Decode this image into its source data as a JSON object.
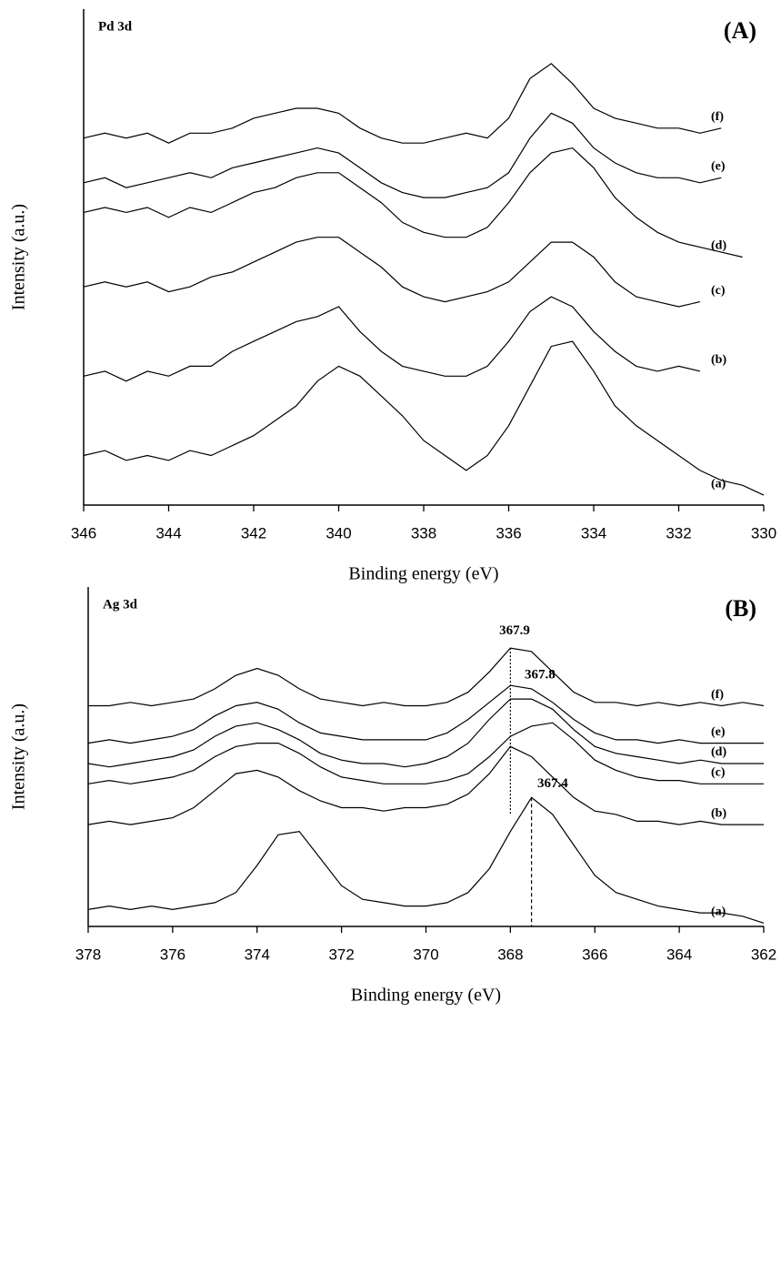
{
  "chart_data": [
    {
      "type": "line",
      "title": "Pd 3d",
      "panel_label": "(A)",
      "xlabel": "Binding energy (eV)",
      "ylabel": "Intensity (a.u.)",
      "x": [
        346,
        345.5,
        345,
        344.5,
        344,
        343.5,
        343,
        342.5,
        342,
        341.5,
        341,
        340.5,
        340,
        339.5,
        339,
        338.5,
        338,
        337.5,
        337,
        336.5,
        336,
        335.5,
        335,
        334.5,
        334,
        333.5,
        333,
        332.5,
        332,
        331.5,
        331,
        330.5,
        330
      ],
      "xlim": [
        346,
        330
      ],
      "xticks": [
        346,
        344,
        342,
        340,
        338,
        336,
        334,
        332,
        330
      ],
      "ylim": [
        0,
        100
      ],
      "series": [
        {
          "name": "(a)",
          "color": "#000000",
          "values": [
            10,
            11,
            9,
            10,
            9,
            11,
            10,
            12,
            14,
            17,
            20,
            25,
            28,
            26,
            22,
            18,
            13,
            10,
            7,
            10,
            16,
            24,
            32,
            33,
            27,
            20,
            16,
            13,
            10,
            7,
            5,
            4,
            2
          ]
        },
        {
          "name": "(b)",
          "color": "#000000",
          "values": [
            26,
            27,
            25,
            27,
            26,
            28,
            28,
            31,
            33,
            35,
            37,
            38,
            40,
            35,
            31,
            28,
            27,
            26,
            26,
            28,
            33,
            39,
            42,
            40,
            35,
            31,
            28,
            27,
            28,
            27,
            null,
            null,
            null
          ]
        },
        {
          "name": "(c)",
          "color": "#000000",
          "values": [
            44,
            45,
            44,
            45,
            43,
            44,
            46,
            47,
            49,
            51,
            53,
            54,
            54,
            51,
            48,
            44,
            42,
            41,
            42,
            43,
            45,
            49,
            53,
            53,
            50,
            45,
            42,
            41,
            40,
            41,
            null,
            null,
            null
          ]
        },
        {
          "name": "(d)",
          "color": "#000000",
          "values": [
            59,
            60,
            59,
            60,
            58,
            60,
            59,
            61,
            63,
            64,
            66,
            67,
            67,
            64,
            61,
            57,
            55,
            54,
            54,
            56,
            61,
            67,
            71,
            72,
            68,
            62,
            58,
            55,
            53,
            52,
            51,
            50,
            null
          ]
        },
        {
          "name": "(e)",
          "color": "#000000",
          "values": [
            65,
            66,
            64,
            65,
            66,
            67,
            66,
            68,
            69,
            70,
            71,
            72,
            71,
            68,
            65,
            63,
            62,
            62,
            63,
            64,
            67,
            74,
            79,
            77,
            72,
            69,
            67,
            66,
            66,
            65,
            66,
            null,
            null
          ]
        },
        {
          "name": "(f)",
          "color": "#000000",
          "values": [
            74,
            75,
            74,
            75,
            73,
            75,
            75,
            76,
            78,
            79,
            80,
            80,
            79,
            76,
            74,
            73,
            73,
            74,
            75,
            74,
            78,
            86,
            89,
            85,
            80,
            78,
            77,
            76,
            76,
            75,
            76,
            null,
            null
          ]
        }
      ]
    },
    {
      "type": "line",
      "title": "Ag 3d",
      "panel_label": "(B)",
      "xlabel": "Binding energy (eV)",
      "ylabel": "Intensity (a.u.)",
      "x": [
        378,
        377.5,
        377,
        376.5,
        376,
        375.5,
        375,
        374.5,
        374,
        373.5,
        373,
        372.5,
        372,
        371.5,
        371,
        370.5,
        370,
        369.5,
        369,
        368.5,
        368,
        367.5,
        367,
        366.5,
        366,
        365.5,
        365,
        364.5,
        364,
        363.5,
        363,
        362.5,
        362
      ],
      "xlim": [
        378,
        362
      ],
      "xticks": [
        378,
        376,
        374,
        372,
        370,
        368,
        366,
        364,
        362
      ],
      "ylim": [
        0,
        100
      ],
      "series": [
        {
          "name": "(a)",
          "color": "#000000",
          "values": [
            5,
            6,
            5,
            6,
            5,
            6,
            7,
            10,
            18,
            27,
            28,
            20,
            12,
            8,
            7,
            6,
            6,
            7,
            10,
            17,
            28,
            38,
            33,
            24,
            15,
            10,
            8,
            6,
            5,
            4,
            4,
            3,
            1
          ]
        },
        {
          "name": "(b)",
          "color": "#000000",
          "values": [
            30,
            31,
            30,
            31,
            32,
            35,
            40,
            45,
            46,
            44,
            40,
            37,
            35,
            35,
            34,
            35,
            35,
            36,
            39,
            45,
            53,
            50,
            44,
            38,
            34,
            33,
            31,
            31,
            30,
            31,
            30,
            30,
            30
          ]
        },
        {
          "name": "(c)",
          "color": "#000000",
          "values": [
            42,
            43,
            42,
            43,
            44,
            46,
            50,
            53,
            54,
            54,
            51,
            47,
            44,
            43,
            42,
            42,
            42,
            43,
            45,
            50,
            56,
            59,
            60,
            55,
            49,
            46,
            44,
            43,
            43,
            42,
            42,
            42,
            42
          ]
        },
        {
          "name": "(d)",
          "color": "#000000",
          "values": [
            48,
            47,
            48,
            49,
            50,
            52,
            56,
            59,
            60,
            58,
            55,
            51,
            49,
            48,
            48,
            47,
            48,
            50,
            54,
            61,
            67,
            67,
            64,
            58,
            53,
            51,
            50,
            49,
            48,
            49,
            48,
            48,
            48
          ]
        },
        {
          "name": "(e)",
          "color": "#000000",
          "values": [
            54,
            55,
            54,
            55,
            56,
            58,
            62,
            65,
            66,
            64,
            60,
            57,
            56,
            55,
            55,
            55,
            55,
            57,
            61,
            66,
            71,
            70,
            66,
            61,
            57,
            55,
            55,
            54,
            55,
            54,
            54,
            54,
            54
          ]
        },
        {
          "name": "(f)",
          "color": "#000000",
          "values": [
            65,
            65,
            66,
            65,
            66,
            67,
            70,
            74,
            76,
            74,
            70,
            67,
            66,
            65,
            66,
            65,
            65,
            66,
            69,
            75,
            82,
            81,
            75,
            69,
            66,
            66,
            65,
            66,
            65,
            66,
            65,
            66,
            65
          ]
        }
      ],
      "annotations": [
        {
          "label": "367.9",
          "x": 367.9,
          "y": 87
        },
        {
          "label": "367.8",
          "x": 367.3,
          "y": 74
        },
        {
          "label": "367.4",
          "x": 367.0,
          "y": 42
        }
      ],
      "reference_lines": [
        {
          "x": 368,
          "y": [
            82,
            33
          ],
          "style": "dotted"
        },
        {
          "x": 367.5,
          "y": [
            38,
            0
          ],
          "style": "dashed"
        }
      ]
    }
  ]
}
